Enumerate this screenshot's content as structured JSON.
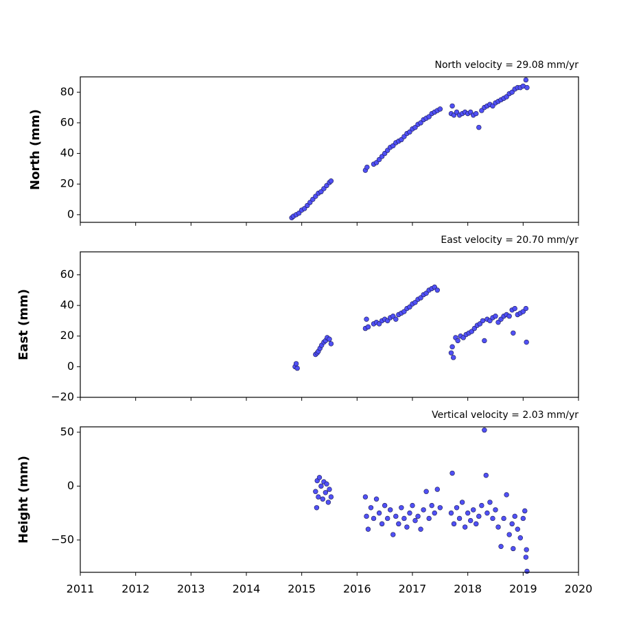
{
  "chart_data": [
    {
      "type": "scatter",
      "title": "North velocity = 29.08 mm/yr",
      "ylabel": "North (mm)",
      "color": "#5050f5",
      "edgecolor": "#1a1a50",
      "xlim": [
        2011,
        2020
      ],
      "xticks": [
        2011,
        2012,
        2013,
        2014,
        2015,
        2016,
        2017,
        2018,
        2019,
        2020
      ],
      "show_xtick_labels": false,
      "ylim": [
        -5,
        90
      ],
      "yticks": [
        0,
        20,
        40,
        60,
        80
      ],
      "series": [
        {
          "name": "North",
          "x": [
            2014.82,
            2014.85,
            2014.9,
            2014.95,
            2015.0,
            2015.05,
            2015.1,
            2015.15,
            2015.2,
            2015.25,
            2015.3,
            2015.35,
            2015.4,
            2015.45,
            2015.5,
            2015.53,
            2016.15,
            2016.18,
            2016.3,
            2016.35,
            2016.4,
            2016.45,
            2016.5,
            2016.55,
            2016.6,
            2016.65,
            2016.7,
            2016.75,
            2016.8,
            2016.85,
            2016.9,
            2016.95,
            2017.0,
            2017.05,
            2017.1,
            2017.15,
            2017.2,
            2017.25,
            2017.3,
            2017.35,
            2017.4,
            2017.45,
            2017.5,
            2017.7,
            2017.72,
            2017.75,
            2017.8,
            2017.85,
            2017.9,
            2017.95,
            2018.0,
            2018.05,
            2018.1,
            2018.15,
            2018.2,
            2018.25,
            2018.3,
            2018.35,
            2018.4,
            2018.45,
            2018.5,
            2018.55,
            2018.6,
            2018.65,
            2018.7,
            2018.75,
            2018.8,
            2018.85,
            2018.9,
            2018.95,
            2019.0,
            2019.05,
            2019.07
          ],
          "values": [
            -2,
            -1,
            0,
            1,
            3,
            4,
            6,
            8,
            10,
            12,
            14,
            15,
            17,
            19,
            21,
            22,
            29,
            31,
            33,
            34,
            36,
            38,
            40,
            42,
            44,
            45,
            47,
            48,
            49,
            51,
            53,
            54,
            56,
            57,
            59,
            60,
            62,
            63,
            64,
            66,
            67,
            68,
            69,
            66,
            71,
            65,
            67,
            65,
            66,
            67,
            66,
            67,
            65,
            66,
            57,
            68,
            70,
            71,
            72,
            71,
            73,
            74,
            75,
            76,
            77,
            79,
            80,
            82,
            83,
            83,
            84,
            88,
            83
          ]
        }
      ]
    },
    {
      "type": "scatter",
      "title": "East velocity = 20.70 mm/yr",
      "ylabel": "East (mm)",
      "color": "#5050f5",
      "edgecolor": "#1a1a50",
      "xlim": [
        2011,
        2020
      ],
      "xticks": [
        2011,
        2012,
        2013,
        2014,
        2015,
        2016,
        2017,
        2018,
        2019,
        2020
      ],
      "show_xtick_labels": false,
      "ylim": [
        -20,
        75
      ],
      "yticks": [
        {
          "value": -20,
          "label": "−20"
        },
        0,
        20,
        40,
        60
      ],
      "series": [
        {
          "name": "East",
          "x": [
            2014.88,
            2014.9,
            2014.92,
            2015.25,
            2015.28,
            2015.3,
            2015.33,
            2015.36,
            2015.4,
            2015.43,
            2015.46,
            2015.5,
            2015.53,
            2016.15,
            2016.17,
            2016.2,
            2016.3,
            2016.35,
            2016.4,
            2016.45,
            2016.5,
            2016.55,
            2016.6,
            2016.65,
            2016.7,
            2016.75,
            2016.8,
            2016.85,
            2016.9,
            2016.95,
            2017.0,
            2017.05,
            2017.1,
            2017.15,
            2017.2,
            2017.25,
            2017.3,
            2017.35,
            2017.4,
            2017.45,
            2017.7,
            2017.72,
            2017.74,
            2017.78,
            2017.82,
            2017.87,
            2017.92,
            2017.97,
            2018.02,
            2018.07,
            2018.12,
            2018.17,
            2018.22,
            2018.27,
            2018.3,
            2018.35,
            2018.4,
            2018.45,
            2018.5,
            2018.55,
            2018.6,
            2018.65,
            2018.7,
            2018.75,
            2018.8,
            2018.82,
            2018.85,
            2018.9,
            2018.95,
            2019.0,
            2019.05,
            2019.06
          ],
          "values": [
            0,
            2,
            -1,
            8,
            9,
            10,
            12,
            14,
            16,
            17,
            19,
            18,
            15,
            25,
            31,
            26,
            28,
            29,
            28,
            30,
            31,
            30,
            32,
            33,
            31,
            34,
            35,
            36,
            38,
            39,
            41,
            42,
            44,
            45,
            47,
            48,
            50,
            51,
            52,
            50,
            9,
            13,
            6,
            19,
            17,
            20,
            19,
            21,
            22,
            23,
            25,
            27,
            28,
            30,
            17,
            31,
            30,
            32,
            33,
            29,
            31,
            33,
            34,
            33,
            37,
            22,
            38,
            34,
            35,
            36,
            38,
            16
          ]
        }
      ]
    },
    {
      "type": "scatter",
      "title": "Vertical velocity = 2.03 mm/yr",
      "ylabel": "Height (mm)",
      "color": "#5050f5",
      "edgecolor": "#1a1a50",
      "xlim": [
        2011,
        2020
      ],
      "xticks": [
        2011,
        2012,
        2013,
        2014,
        2015,
        2016,
        2017,
        2018,
        2019,
        2020
      ],
      "show_xtick_labels": true,
      "ylim": [
        -80,
        55
      ],
      "yticks": [
        {
          "value": -50,
          "label": "−50"
        },
        0,
        50
      ],
      "series": [
        {
          "name": "Height",
          "x": [
            2015.25,
            2015.27,
            2015.28,
            2015.3,
            2015.32,
            2015.35,
            2015.38,
            2015.4,
            2015.43,
            2015.45,
            2015.48,
            2015.5,
            2015.53,
            2016.15,
            2016.17,
            2016.2,
            2016.25,
            2016.3,
            2016.35,
            2016.4,
            2016.45,
            2016.5,
            2016.55,
            2016.6,
            2016.65,
            2016.7,
            2016.75,
            2016.8,
            2016.85,
            2016.9,
            2016.95,
            2017.0,
            2017.05,
            2017.1,
            2017.15,
            2017.2,
            2017.25,
            2017.3,
            2017.35,
            2017.4,
            2017.45,
            2017.5,
            2017.7,
            2017.72,
            2017.75,
            2017.8,
            2017.85,
            2017.9,
            2017.95,
            2018.0,
            2018.05,
            2018.1,
            2018.15,
            2018.2,
            2018.25,
            2018.3,
            2018.33,
            2018.35,
            2018.4,
            2018.45,
            2018.5,
            2018.55,
            2018.6,
            2018.65,
            2018.7,
            2018.75,
            2018.8,
            2018.82,
            2018.85,
            2018.9,
            2018.95,
            2019.0,
            2019.03,
            2019.05,
            2019.06,
            2019.07
          ],
          "values": [
            -5,
            -20,
            5,
            -10,
            8,
            0,
            -12,
            4,
            -6,
            2,
            -15,
            -3,
            -10,
            -10,
            -28,
            -40,
            -20,
            -30,
            -12,
            -25,
            -35,
            -18,
            -30,
            -22,
            -45,
            -28,
            -35,
            -20,
            -30,
            -38,
            -25,
            -18,
            -32,
            -28,
            -40,
            -22,
            -5,
            -30,
            -18,
            -25,
            -3,
            -20,
            -25,
            12,
            -35,
            -20,
            -30,
            -15,
            -38,
            -25,
            -32,
            -22,
            -35,
            -28,
            -18,
            52,
            10,
            -25,
            -15,
            -30,
            -22,
            -38,
            -56,
            -30,
            -8,
            -45,
            -35,
            -58,
            -28,
            -40,
            -48,
            -30,
            -23,
            -66,
            -59,
            -79
          ]
        }
      ]
    }
  ]
}
